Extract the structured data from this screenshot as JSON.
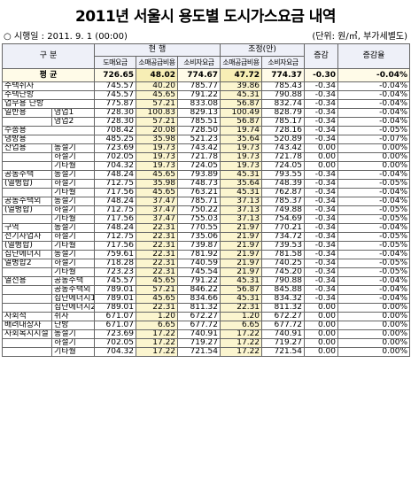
{
  "title": "2011년 서울시 용도별 도시가스요금 내역",
  "subtitle_left": "○ 시행일 : 2011. 9. 1 (00:00)",
  "subtitle_right": "(단위: 원/㎥, 부가세별도)",
  "header": {
    "category": "구 분",
    "current": "현 행",
    "adjusted": "조정(안)",
    "diff": "증감",
    "diff_rate": "증감율",
    "col_wholesale": "도매요금",
    "col_retail": "소매공급비용",
    "col_total": "소비자요금"
  },
  "average": {
    "label": "평 균",
    "v": [
      "726.65",
      "48.02",
      "774.67",
      "47.72",
      "774.37",
      "-0.30",
      "-0.04%"
    ]
  },
  "rows": [
    {
      "c1": "주택취사",
      "c2": "",
      "v": [
        "745.57",
        "40.20",
        "785.77",
        "39.86",
        "785.43",
        "-0.34",
        "-0.04%"
      ]
    },
    {
      "c1": "주택난방",
      "c2": "",
      "v": [
        "745.57",
        "45.65",
        "791.22",
        "45.31",
        "790.88",
        "-0.34",
        "-0.04%"
      ]
    },
    {
      "c1": "업무용 난방",
      "c2": "",
      "v": [
        "775.87",
        "57.21",
        "833.08",
        "56.87",
        "832.74",
        "-0.34",
        "-0.04%"
      ]
    },
    {
      "c1": "일반용",
      "c2": "영업1",
      "v": [
        "728.30",
        "100.83",
        "829.13",
        "100.49",
        "828.79",
        "-0.34",
        "-0.04%"
      ]
    },
    {
      "c1": "",
      "c2": "영업2",
      "v": [
        "728.30",
        "57.21",
        "785.51",
        "56.87",
        "785.17",
        "-0.34",
        "-0.04%"
      ]
    },
    {
      "c1": "수송용",
      "c2": "",
      "v": [
        "708.42",
        "20.08",
        "728.50",
        "19.74",
        "728.16",
        "-0.34",
        "-0.05%"
      ]
    },
    {
      "c1": "냉방용",
      "c2": "",
      "v": [
        "485.25",
        "35.98",
        "521.23",
        "35.64",
        "520.89",
        "-0.34",
        "-0.07%"
      ]
    },
    {
      "c1": "산업용",
      "c2": "동절기",
      "v": [
        "723.69",
        "19.73",
        "743.42",
        "19.73",
        "743.42",
        "0.00",
        "0.00%"
      ]
    },
    {
      "c1": "",
      "c2": "하절기",
      "v": [
        "702.05",
        "19.73",
        "721.78",
        "19.73",
        "721.78",
        "0.00",
        "0.00%"
      ]
    },
    {
      "c1": "",
      "c2": "기타월",
      "v": [
        "704.32",
        "19.73",
        "724.05",
        "19.73",
        "724.05",
        "0.00",
        "0.00%"
      ]
    },
    {
      "c1": "공동주택",
      "c2": "동절기",
      "v": [
        "748.24",
        "45.65",
        "793.89",
        "45.31",
        "793.55",
        "-0.34",
        "-0.04%"
      ]
    },
    {
      "c1": "(열병합)",
      "c2": "하절기",
      "v": [
        "712.75",
        "35.98",
        "748.73",
        "35.64",
        "748.39",
        "-0.34",
        "-0.05%"
      ]
    },
    {
      "c1": "",
      "c2": "기타월",
      "v": [
        "717.56",
        "45.65",
        "763.21",
        "45.31",
        "762.87",
        "-0.34",
        "-0.04%"
      ]
    },
    {
      "c1": "공동주택외",
      "c2": "동절기",
      "v": [
        "748.24",
        "37.47",
        "785.71",
        "37.13",
        "785.37",
        "-0.34",
        "-0.04%"
      ]
    },
    {
      "c1": "(열병합)",
      "c2": "하절기",
      "v": [
        "712.75",
        "37.47",
        "750.22",
        "37.13",
        "749.88",
        "-0.34",
        "-0.05%"
      ]
    },
    {
      "c1": "",
      "c2": "기타월",
      "v": [
        "717.56",
        "37.47",
        "755.03",
        "37.13",
        "754.69",
        "-0.34",
        "-0.05%"
      ]
    },
    {
      "c1": "구역",
      "c2": "동절기",
      "v": [
        "748.24",
        "22.31",
        "770.55",
        "21.97",
        "770.21",
        "-0.34",
        "-0.04%"
      ]
    },
    {
      "c1": "전기사업자",
      "c2": "하절기",
      "v": [
        "712.75",
        "22.31",
        "735.06",
        "21.97",
        "734.72",
        "-0.34",
        "-0.05%"
      ]
    },
    {
      "c1": "(열병합)",
      "c2": "기타월",
      "v": [
        "717.56",
        "22.31",
        "739.87",
        "21.97",
        "739.53",
        "-0.34",
        "-0.05%"
      ]
    },
    {
      "c1": "집단에너지",
      "c2": "동절기",
      "v": [
        "759.61",
        "22.31",
        "781.92",
        "21.97",
        "781.58",
        "-0.34",
        "-0.04%"
      ]
    },
    {
      "c1": "열병합2",
      "c2": "하절기",
      "v": [
        "718.28",
        "22.31",
        "740.59",
        "21.97",
        "740.25",
        "-0.34",
        "-0.05%"
      ]
    },
    {
      "c1": "",
      "c2": "기타월",
      "v": [
        "723.23",
        "22.31",
        "745.54",
        "21.97",
        "745.20",
        "-0.34",
        "-0.05%"
      ]
    },
    {
      "c1": "열전용",
      "c2": "공동주택",
      "v": [
        "745.57",
        "45.65",
        "791.22",
        "45.31",
        "790.88",
        "-0.34",
        "-0.04%"
      ]
    },
    {
      "c1": "",
      "c2": "공동주택외",
      "v": [
        "789.01",
        "57.21",
        "846.22",
        "56.87",
        "845.88",
        "-0.34",
        "-0.04%"
      ]
    },
    {
      "c1": "",
      "c2": "집단에너지1",
      "v": [
        "789.01",
        "45.65",
        "834.66",
        "45.31",
        "834.32",
        "-0.34",
        "-0.04%"
      ]
    },
    {
      "c1": "",
      "c2": "집단에너지2",
      "v": [
        "789.01",
        "22.31",
        "811.32",
        "22.31",
        "811.32",
        "0.00",
        "0.00%"
      ]
    },
    {
      "c1": "사회적",
      "c2": "취사",
      "v": [
        "671.07",
        "1.20",
        "672.27",
        "1.20",
        "672.27",
        "0.00",
        "0.00%"
      ]
    },
    {
      "c1": "배려대상자",
      "c2": "난방",
      "v": [
        "671.07",
        "6.65",
        "677.72",
        "6.65",
        "677.72",
        "0.00",
        "0.00%"
      ]
    },
    {
      "c1": "사회복지시설",
      "c2": "동절기",
      "v": [
        "723.69",
        "17.22",
        "740.91",
        "17.22",
        "740.91",
        "0.00",
        "0.00%"
      ]
    },
    {
      "c1": "",
      "c2": "하절기",
      "v": [
        "702.05",
        "17.22",
        "719.27",
        "17.22",
        "719.27",
        "0.00",
        "0.00%"
      ]
    },
    {
      "c1": "",
      "c2": "기타월",
      "v": [
        "704.32",
        "17.22",
        "721.54",
        "17.22",
        "721.54",
        "0.00",
        "0.00%"
      ]
    }
  ]
}
